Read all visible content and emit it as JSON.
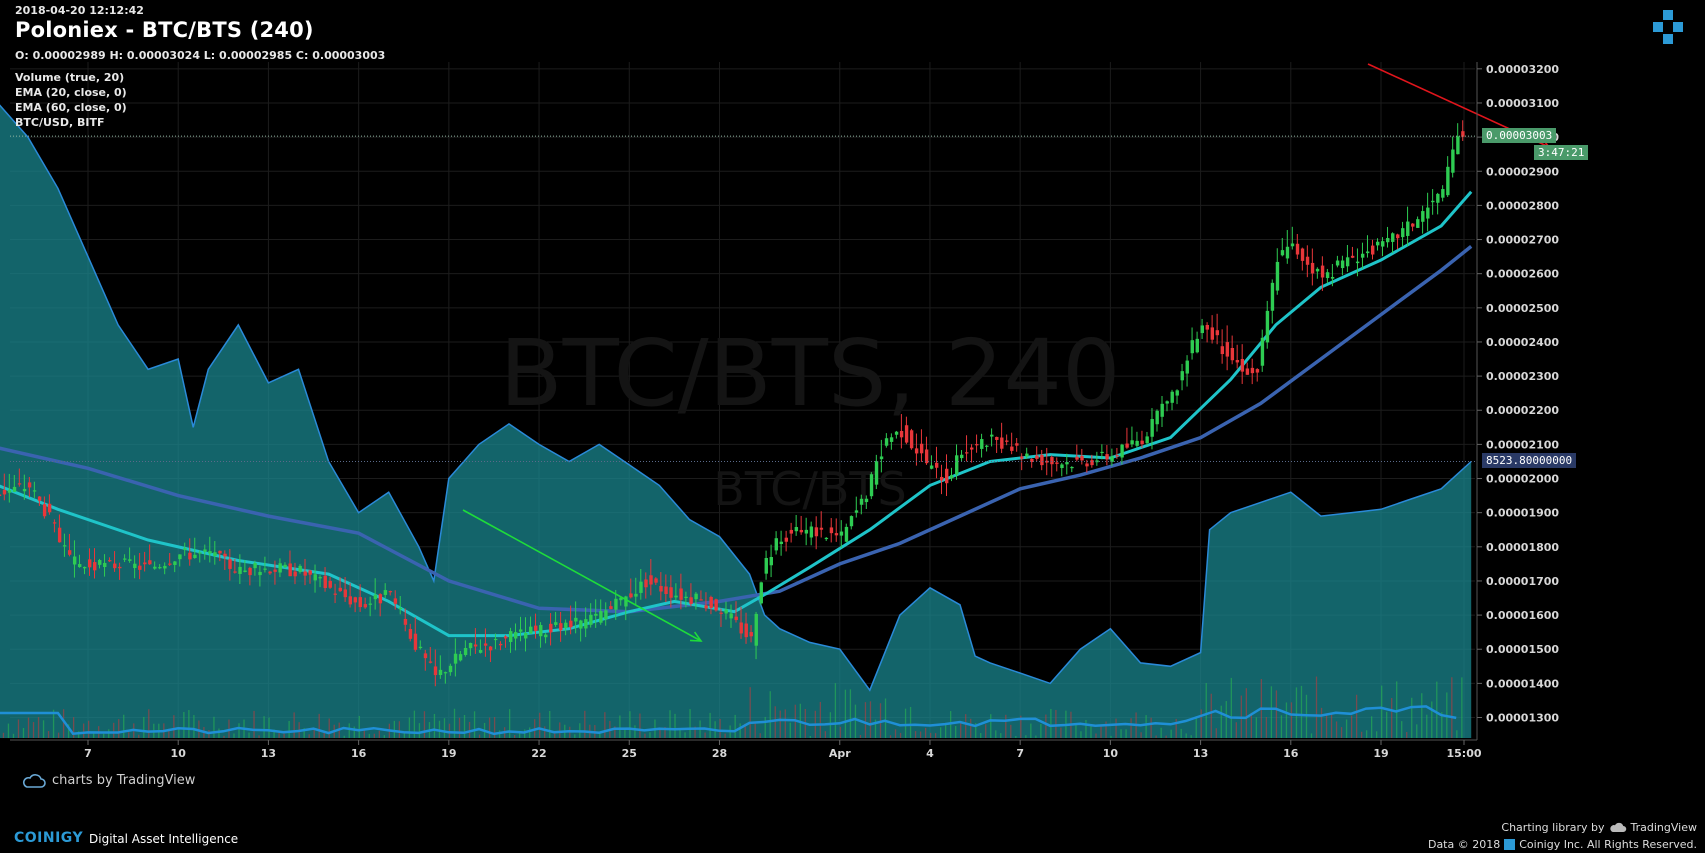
{
  "header": {
    "timestamp": "2018-04-20 12:12:42",
    "title": "Poloniex - BTC/BTS (240)",
    "ohlc": "O: 0.00002989 H: 0.00003024 L: 0.00002985 C: 0.00003003"
  },
  "indicators": [
    "Volume (true, 20)",
    "EMA (20, close, 0)",
    "EMA (60, close, 0)",
    "BTC/USD, BITF"
  ],
  "watermark": {
    "main": "BTC/BTS, 240",
    "sub": "BTC/BTS"
  },
  "badges": {
    "last_price": "0.00003003",
    "countdown": "3:47:21",
    "secondary_value": "8523.80000000"
  },
  "branding": {
    "tv_badge": "charts by TradingView",
    "brand": "COINIGY",
    "tagline": "Digital Asset Intelligence",
    "charting_library": "Charting library by",
    "tradingview": "TradingView",
    "copyright": "Data © 2018",
    "copyright_owner": "Coinigy Inc. All Rights Reserved."
  },
  "colors": {
    "background": "#000000",
    "candle_up": "#2ecc52",
    "candle_down": "#e8373a",
    "ema20": "#1fc4c9",
    "ema60": "#3a63b0",
    "secondary_area": "#1b8a93",
    "arrow_red": "#e0151c",
    "arrow_green": "#1edc3a",
    "price_tag": "#4a9a6a",
    "brand_blue": "#2c9ad6"
  },
  "chart_data": {
    "type": "candlestick",
    "symbol": "BTC/BTS",
    "interval": "240",
    "x_tick_labels": [
      "7",
      "10",
      "13",
      "16",
      "19",
      "22",
      "25",
      "28",
      "Apr",
      "4",
      "7",
      "10",
      "13",
      "16",
      "19",
      "15:00"
    ],
    "y_tick_labels": [
      "0.00003200",
      "0.00003100",
      "0.00003000",
      "0.00002900",
      "0.00002800",
      "0.00002700",
      "0.00002600",
      "0.00002500",
      "0.00002400",
      "0.00002300",
      "0.00002200",
      "0.00002100",
      "0.00002000",
      "0.00001900",
      "0.00001800",
      "0.00001700",
      "0.00001600",
      "0.00001500",
      "0.00001400",
      "0.00001300"
    ],
    "ylim": [
      1.24e-05,
      3.22e-05
    ],
    "price_path_days": [
      [
        4.0,
        1.96e-05
      ],
      [
        5.0,
        1.98e-05
      ],
      [
        5.7,
        1.88e-05
      ],
      [
        6.3,
        1.76e-05
      ],
      [
        7.0,
        1.74e-05
      ],
      [
        8.0,
        1.75e-05
      ],
      [
        9.0,
        1.74e-05
      ],
      [
        10.0,
        1.78e-05
      ],
      [
        11.0,
        1.78e-05
      ],
      [
        12.0,
        1.73e-05
      ],
      [
        13.0,
        1.74e-05
      ],
      [
        14.0,
        1.73e-05
      ],
      [
        15.0,
        1.68e-05
      ],
      [
        16.0,
        1.63e-05
      ],
      [
        17.0,
        1.66e-05
      ],
      [
        17.8,
        1.52e-05
      ],
      [
        18.5,
        1.42e-05
      ],
      [
        19.0,
        1.46e-05
      ],
      [
        19.5,
        1.5e-05
      ],
      [
        20.5,
        1.52e-05
      ],
      [
        21.5,
        1.55e-05
      ],
      [
        22.5,
        1.56e-05
      ],
      [
        23.5,
        1.58e-05
      ],
      [
        24.5,
        1.63e-05
      ],
      [
        25.5,
        1.7e-05
      ],
      [
        26.3,
        1.67e-05
      ],
      [
        27.0,
        1.65e-05
      ],
      [
        28.0,
        1.62e-05
      ],
      [
        29.0,
        1.53e-05
      ],
      [
        29.4,
        1.75e-05
      ],
      [
        30.0,
        1.83e-05
      ],
      [
        31.0,
        1.85e-05
      ],
      [
        32.0,
        1.83e-05
      ],
      [
        32.8,
        1.95e-05
      ],
      [
        33.5,
        2.12e-05
      ],
      [
        34.0,
        2.14e-05
      ],
      [
        35.0,
        2.03e-05
      ],
      [
        35.5,
        2e-05
      ],
      [
        36.0,
        2.08e-05
      ],
      [
        37.0,
        2.11e-05
      ],
      [
        38.0,
        2.07e-05
      ],
      [
        39.0,
        2.05e-05
      ],
      [
        40.0,
        2.05e-05
      ],
      [
        41.0,
        2.07e-05
      ],
      [
        42.0,
        2.12e-05
      ],
      [
        43.0,
        2.24e-05
      ],
      [
        44.0,
        2.46e-05
      ],
      [
        44.5,
        2.4e-05
      ],
      [
        45.0,
        2.35e-05
      ],
      [
        45.8,
        2.3e-05
      ],
      [
        46.5,
        2.65e-05
      ],
      [
        47.0,
        2.68e-05
      ],
      [
        48.0,
        2.59e-05
      ],
      [
        49.0,
        2.65e-05
      ],
      [
        50.0,
        2.68e-05
      ],
      [
        51.0,
        2.75e-05
      ],
      [
        52.0,
        2.84e-05
      ],
      [
        52.5,
        3e-05
      ],
      [
        52.8,
        3.02e-05
      ]
    ],
    "ema20_days": [
      [
        4.0,
        1.98e-05
      ],
      [
        6.0,
        1.91e-05
      ],
      [
        9.0,
        1.82e-05
      ],
      [
        12.0,
        1.76e-05
      ],
      [
        15.0,
        1.72e-05
      ],
      [
        17.0,
        1.64e-05
      ],
      [
        19.0,
        1.54e-05
      ],
      [
        21.0,
        1.54e-05
      ],
      [
        23.0,
        1.56e-05
      ],
      [
        25.0,
        1.61e-05
      ],
      [
        26.5,
        1.64e-05
      ],
      [
        28.5,
        1.61e-05
      ],
      [
        29.5,
        1.66e-05
      ],
      [
        31.0,
        1.74e-05
      ],
      [
        33.0,
        1.85e-05
      ],
      [
        35.0,
        1.98e-05
      ],
      [
        37.0,
        2.05e-05
      ],
      [
        39.0,
        2.07e-05
      ],
      [
        41.0,
        2.06e-05
      ],
      [
        43.0,
        2.12e-05
      ],
      [
        45.0,
        2.29e-05
      ],
      [
        46.5,
        2.45e-05
      ],
      [
        48.0,
        2.56e-05
      ],
      [
        50.0,
        2.64e-05
      ],
      [
        52.0,
        2.74e-05
      ],
      [
        53.0,
        2.84e-05
      ]
    ],
    "ema60_days": [
      [
        4.0,
        2.09e-05
      ],
      [
        7.0,
        2.03e-05
      ],
      [
        10.0,
        1.95e-05
      ],
      [
        13.0,
        1.89e-05
      ],
      [
        16.0,
        1.84e-05
      ],
      [
        19.0,
        1.7e-05
      ],
      [
        22.0,
        1.62e-05
      ],
      [
        25.0,
        1.61e-05
      ],
      [
        28.0,
        1.64e-05
      ],
      [
        30.0,
        1.67e-05
      ],
      [
        32.0,
        1.75e-05
      ],
      [
        34.0,
        1.81e-05
      ],
      [
        36.0,
        1.89e-05
      ],
      [
        38.0,
        1.97e-05
      ],
      [
        40.0,
        2.01e-05
      ],
      [
        42.0,
        2.06e-05
      ],
      [
        44.0,
        2.12e-05
      ],
      [
        46.0,
        2.22e-05
      ],
      [
        48.0,
        2.35e-05
      ],
      [
        50.0,
        2.48e-05
      ],
      [
        52.0,
        2.61e-05
      ],
      [
        53.0,
        2.68e-05
      ]
    ],
    "secondary_series_days": [
      [
        4.0,
        3.1e-05
      ],
      [
        5.0,
        3e-05
      ],
      [
        6.0,
        2.85e-05
      ],
      [
        7.0,
        2.65e-05
      ],
      [
        8.0,
        2.45e-05
      ],
      [
        9.0,
        2.32e-05
      ],
      [
        10.0,
        2.35e-05
      ],
      [
        10.5,
        2.15e-05
      ],
      [
        11.0,
        2.32e-05
      ],
      [
        12.0,
        2.45e-05
      ],
      [
        13.0,
        2.28e-05
      ],
      [
        14.0,
        2.32e-05
      ],
      [
        15.0,
        2.05e-05
      ],
      [
        16.0,
        1.9e-05
      ],
      [
        17.0,
        1.96e-05
      ],
      [
        18.0,
        1.8e-05
      ],
      [
        18.5,
        1.7e-05
      ],
      [
        19.0,
        2e-05
      ],
      [
        20.0,
        2.1e-05
      ],
      [
        21.0,
        2.16e-05
      ],
      [
        22.0,
        2.1e-05
      ],
      [
        23.0,
        2.05e-05
      ],
      [
        24.0,
        2.1e-05
      ],
      [
        25.0,
        2.04e-05
      ],
      [
        26.0,
        1.98e-05
      ],
      [
        27.0,
        1.88e-05
      ],
      [
        28.0,
        1.83e-05
      ],
      [
        29.0,
        1.72e-05
      ],
      [
        29.5,
        1.6e-05
      ],
      [
        30.0,
        1.56e-05
      ],
      [
        31.0,
        1.52e-05
      ],
      [
        32.0,
        1.5e-05
      ],
      [
        33.0,
        1.38e-05
      ],
      [
        34.0,
        1.6e-05
      ],
      [
        35.0,
        1.68e-05
      ],
      [
        36.0,
        1.63e-05
      ],
      [
        36.5,
        1.48e-05
      ],
      [
        37.0,
        1.46e-05
      ],
      [
        38.0,
        1.43e-05
      ],
      [
        39.0,
        1.4e-05
      ],
      [
        40.0,
        1.5e-05
      ],
      [
        41.0,
        1.56e-05
      ],
      [
        42.0,
        1.46e-05
      ],
      [
        43.0,
        1.45e-05
      ],
      [
        44.0,
        1.49e-05
      ],
      [
        44.3,
        1.85e-05
      ],
      [
        45.0,
        1.9e-05
      ],
      [
        46.0,
        1.93e-05
      ],
      [
        47.0,
        1.96e-05
      ],
      [
        48.0,
        1.89e-05
      ],
      [
        49.0,
        1.9e-05
      ],
      [
        50.0,
        1.91e-05
      ],
      [
        51.0,
        1.94e-05
      ],
      [
        52.0,
        1.97e-05
      ],
      [
        53.0,
        2.05e-05
      ]
    ],
    "last_price": 3.003e-05,
    "secondary_last": 8523.8
  }
}
